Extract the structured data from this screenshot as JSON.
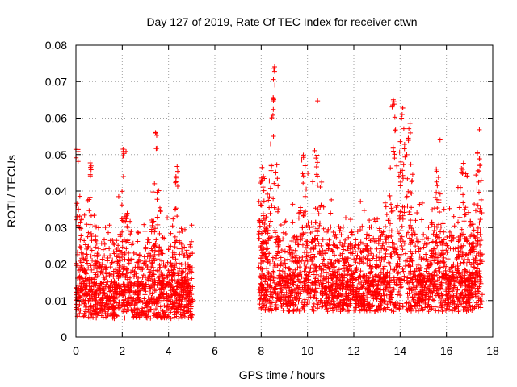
{
  "chart_data": {
    "type": "scatter",
    "title": "Day 127 of 2019, Rate Of TEC Index for receiver ctwn",
    "xlabel": "GPS time / hours",
    "ylabel": "ROTI / TECUs",
    "xlim": [
      0,
      18
    ],
    "ylim": [
      0,
      0.08
    ],
    "xticks": [
      "0",
      "2",
      "4",
      "6",
      "8",
      "10",
      "12",
      "14",
      "16",
      "18"
    ],
    "yticks": [
      "0",
      "0.01",
      "0.02",
      "0.03",
      "0.04",
      "0.05",
      "0.06",
      "0.07",
      "0.08"
    ],
    "grid": true,
    "marker": "+",
    "color": "#ff0000",
    "series": [
      {
        "name": "ROTI",
        "segments": [
          {
            "x_start": 0.0,
            "x_end": 5.05,
            "baseline": 0.01,
            "spread": 0.012
          },
          {
            "x_start": 7.9,
            "x_end": 17.55,
            "baseline": 0.012,
            "spread": 0.015
          }
        ],
        "peaks": [
          {
            "x": 0.05,
            "y": 0.052
          },
          {
            "x": 0.6,
            "y": 0.05
          },
          {
            "x": 2.05,
            "y": 0.053
          },
          {
            "x": 3.45,
            "y": 0.057
          },
          {
            "x": 4.35,
            "y": 0.046
          },
          {
            "x": 8.0,
            "y": 0.047
          },
          {
            "x": 8.55,
            "y": 0.075
          },
          {
            "x": 8.5,
            "y": 0.066
          },
          {
            "x": 9.8,
            "y": 0.05
          },
          {
            "x": 10.4,
            "y": 0.05
          },
          {
            "x": 13.7,
            "y": 0.068
          },
          {
            "x": 14.1,
            "y": 0.063
          },
          {
            "x": 14.4,
            "y": 0.059
          },
          {
            "x": 15.6,
            "y": 0.047
          },
          {
            "x": 16.7,
            "y": 0.047
          },
          {
            "x": 17.4,
            "y": 0.051
          }
        ]
      }
    ]
  }
}
